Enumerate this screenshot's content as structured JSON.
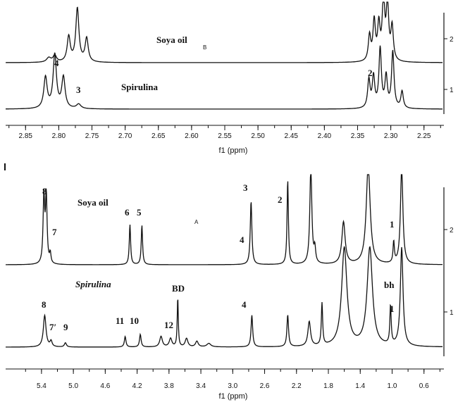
{
  "chart_data": [
    {
      "panel": "B",
      "type": "line",
      "title": "",
      "xlabel": "f1 (ppm)",
      "ylabel": "",
      "xlim": [
        2.88,
        2.22
      ],
      "x_reversed": true,
      "x_ticks": [
        "2.85",
        "2.80",
        "2.75",
        "2.70",
        "2.65",
        "2.60",
        "2.55",
        "2.50",
        "2.45",
        "2.40",
        "2.35",
        "2.30",
        "2.25"
      ],
      "right_ticks": [
        "2",
        "1"
      ],
      "panel_label": "B",
      "series": [
        {
          "name": "Soya oil",
          "trace_index": "2",
          "peaks": [
            {
              "ppm": 2.815,
              "height": 0.08,
              "width": 0.004
            },
            {
              "ppm": 2.806,
              "height": 0.12,
              "width": 0.003
            },
            {
              "ppm": 2.785,
              "height": 0.45,
              "width": 0.0028
            },
            {
              "ppm": 2.772,
              "height": 0.95,
              "width": 0.0028
            },
            {
              "ppm": 2.758,
              "height": 0.42,
              "width": 0.0028
            },
            {
              "ppm": 2.332,
              "height": 0.45,
              "width": 0.0022
            },
            {
              "ppm": 2.325,
              "height": 0.7,
              "width": 0.0022
            },
            {
              "ppm": 2.318,
              "height": 0.62,
              "width": 0.0022
            },
            {
              "ppm": 2.311,
              "height": 1.1,
              "width": 0.0022
            },
            {
              "ppm": 2.305,
              "height": 1.0,
              "width": 0.0022
            },
            {
              "ppm": 2.298,
              "height": 0.6,
              "width": 0.0022
            }
          ]
        },
        {
          "name": "Spirulina",
          "trace_index": "1",
          "peaks": [
            {
              "ppm": 2.82,
              "height": 0.55,
              "width": 0.003
            },
            {
              "ppm": 2.806,
              "height": 0.95,
              "width": 0.003
            },
            {
              "ppm": 2.793,
              "height": 0.55,
              "width": 0.003
            },
            {
              "ppm": 2.77,
              "height": 0.08,
              "width": 0.004
            },
            {
              "ppm": 2.333,
              "height": 0.5,
              "width": 0.0022
            },
            {
              "ppm": 2.326,
              "height": 0.55,
              "width": 0.0022
            },
            {
              "ppm": 2.316,
              "height": 1.05,
              "width": 0.0022
            },
            {
              "ppm": 2.307,
              "height": 0.55,
              "width": 0.0022
            },
            {
              "ppm": 2.297,
              "height": 1.0,
              "width": 0.0022
            },
            {
              "ppm": 2.283,
              "height": 0.3,
              "width": 0.0022
            }
          ]
        }
      ],
      "annotations": [
        {
          "text": "Soya oil",
          "ppm": 2.8
        },
        {
          "text": "Spirulina",
          "ppm": 2.76
        },
        {
          "text": "4",
          "ppm": 2.81
        },
        {
          "text": "3",
          "ppm": 2.771
        },
        {
          "text": "2",
          "ppm": 2.336
        }
      ]
    },
    {
      "panel": "A",
      "type": "line",
      "title": "",
      "xlabel": "f1 (ppm)",
      "ylabel": "",
      "xlim": [
        5.85,
        0.35
      ],
      "x_reversed": true,
      "x_ticks": [
        "5.4",
        "5.0",
        "4.6",
        "4.2",
        "3.8",
        "3.4",
        "3.0",
        "2.6",
        "2.2",
        "1.8",
        "1.4",
        "1.0",
        "0.6"
      ],
      "right_ticks": [
        "2",
        "1"
      ],
      "panel_label": "A",
      "series": [
        {
          "name": "Soya oil",
          "trace_index": "2",
          "peaks": [
            {
              "ppm": 5.37,
              "height": 0.95,
              "width": 0.012
            },
            {
              "ppm": 5.34,
              "height": 0.95,
              "width": 0.012
            },
            {
              "ppm": 5.29,
              "height": 0.14,
              "width": 0.01
            },
            {
              "ppm": 4.29,
              "height": 0.57,
              "width": 0.01
            },
            {
              "ppm": 4.14,
              "height": 0.56,
              "width": 0.01
            },
            {
              "ppm": 2.77,
              "height": 0.9,
              "width": 0.012
            },
            {
              "ppm": 2.31,
              "height": 1.2,
              "width": 0.01
            },
            {
              "ppm": 2.02,
              "height": 1.4,
              "width": 0.015
            },
            {
              "ppm": 1.97,
              "height": 0.2,
              "width": 0.012
            },
            {
              "ppm": 1.61,
              "height": 0.6,
              "width": 0.025
            },
            {
              "ppm": 1.3,
              "height": 1.4,
              "width": 0.03
            },
            {
              "ppm": 0.98,
              "height": 0.3,
              "width": 0.01
            },
            {
              "ppm": 0.88,
              "height": 1.4,
              "width": 0.018
            }
          ]
        },
        {
          "name": "Spirulina",
          "trace_index": "1",
          "peaks": [
            {
              "ppm": 5.36,
              "height": 0.45,
              "width": 0.02
            },
            {
              "ppm": 5.28,
              "height": 0.08,
              "width": 0.015
            },
            {
              "ppm": 5.1,
              "height": 0.06,
              "width": 0.015
            },
            {
              "ppm": 4.35,
              "height": 0.15,
              "width": 0.012
            },
            {
              "ppm": 4.16,
              "height": 0.18,
              "width": 0.012
            },
            {
              "ppm": 3.9,
              "height": 0.15,
              "width": 0.02
            },
            {
              "ppm": 3.78,
              "height": 0.12,
              "width": 0.02
            },
            {
              "ppm": 3.69,
              "height": 0.7,
              "width": 0.008
            },
            {
              "ppm": 3.58,
              "height": 0.12,
              "width": 0.02
            },
            {
              "ppm": 3.45,
              "height": 0.08,
              "width": 0.02
            },
            {
              "ppm": 3.3,
              "height": 0.05,
              "width": 0.03
            },
            {
              "ppm": 2.76,
              "height": 0.45,
              "width": 0.012
            },
            {
              "ppm": 2.31,
              "height": 0.45,
              "width": 0.012
            },
            {
              "ppm": 2.04,
              "height": 0.35,
              "width": 0.02
            },
            {
              "ppm": 1.88,
              "height": 0.6,
              "width": 0.01
            },
            {
              "ppm": 1.6,
              "height": 1.4,
              "width": 0.04
            },
            {
              "ppm": 1.28,
              "height": 1.4,
              "width": 0.04
            },
            {
              "ppm": 1.02,
              "height": 0.55,
              "width": 0.01
            },
            {
              "ppm": 0.88,
              "height": 1.4,
              "width": 0.02
            }
          ]
        }
      ],
      "annotations": [
        {
          "text": "Soya oil",
          "ppm": 5.0
        },
        {
          "text": "Spirulina",
          "ppm": 5.0
        },
        {
          "text": "8",
          "ppm": 5.37
        },
        {
          "text": "7",
          "ppm": 5.27
        },
        {
          "text": "6",
          "ppm": 4.29
        },
        {
          "text": "5",
          "ppm": 4.14
        },
        {
          "text": "3",
          "ppm": 2.77
        },
        {
          "text": "4",
          "ppm": 2.8
        },
        {
          "text": "2",
          "ppm": 2.34
        },
        {
          "text": "1",
          "ppm": 0.98
        },
        {
          "text": "8",
          "ppm": 5.37
        },
        {
          "text": "7′",
          "ppm": 5.25
        },
        {
          "text": "9",
          "ppm": 5.1
        },
        {
          "text": "11",
          "ppm": 4.35
        },
        {
          "text": "10",
          "ppm": 4.17
        },
        {
          "text": "12",
          "ppm": 3.82
        },
        {
          "text": "BD",
          "ppm": 3.69
        },
        {
          "text": "4",
          "ppm": 2.77
        },
        {
          "text": "bh",
          "ppm": 1.0
        },
        {
          "text": "1",
          "ppm": 0.96
        }
      ]
    }
  ]
}
